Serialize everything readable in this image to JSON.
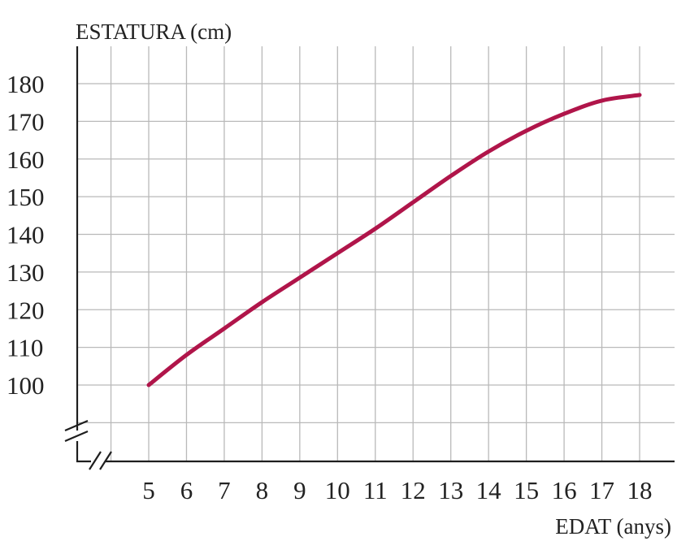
{
  "chart_data": {
    "type": "line",
    "title": "",
    "ylabel": "ESTATURA (cm)",
    "xlabel": "EDAT (anys)",
    "xlim": [
      5,
      18
    ],
    "ylim": [
      100,
      180
    ],
    "x_ticks": [
      5,
      6,
      7,
      8,
      9,
      10,
      11,
      12,
      13,
      14,
      15,
      16,
      17,
      18
    ],
    "y_ticks": [
      100,
      110,
      120,
      130,
      140,
      150,
      160,
      170,
      180
    ],
    "grid": true,
    "axis_breaks": true,
    "series": [
      {
        "color": "#b0154a",
        "x": [
          5,
          6,
          7,
          8,
          9,
          10,
          11,
          12,
          13,
          14,
          15,
          16,
          17,
          18
        ],
        "y": [
          100,
          108,
          115,
          122,
          128.5,
          135,
          141.5,
          148.5,
          155.5,
          162,
          167.5,
          172,
          175.5,
          177
        ]
      }
    ]
  }
}
